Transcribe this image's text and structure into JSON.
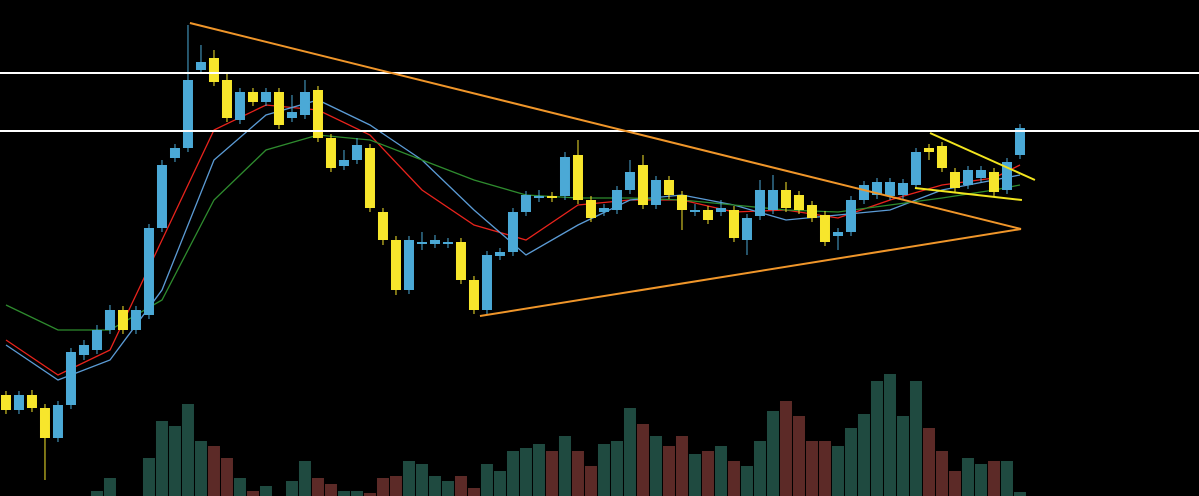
{
  "chart_data": {
    "type": "candlestick",
    "xlim": [
      -0.46,
      91.77
    ],
    "ylim": [
      4,
      500
    ],
    "vlim": [
      0,
      130
    ],
    "up_color": "#4ba9d6",
    "down_color": "#f7e62c",
    "volume_up_color": "#1f4a40",
    "volume_down_color": "#5c2a27",
    "open": [
      105,
      90,
      105,
      92,
      62,
      95,
      145,
      150,
      170,
      190,
      170,
      185,
      272,
      342,
      352,
      430,
      442,
      420,
      380,
      408,
      398,
      408,
      382,
      385,
      410,
      362,
      334,
      340,
      352,
      288,
      260,
      210,
      256,
      256,
      256,
      258,
      220,
      190,
      244,
      248,
      288,
      302,
      304,
      304,
      345,
      300,
      288,
      290,
      310,
      335,
      295,
      320,
      305,
      288,
      290,
      288,
      290,
      260,
      284,
      290,
      310,
      305,
      295,
      285,
      264,
      268,
      300,
      305,
      304,
      305,
      315,
      352,
      354,
      328,
      315,
      322,
      328,
      310,
      345
    ],
    "high": [
      109,
      109,
      110,
      96,
      99,
      152,
      160,
      175,
      195,
      194,
      194,
      276,
      340,
      356,
      475,
      455,
      450,
      426,
      412,
      412,
      412,
      412,
      405,
      420,
      414,
      366,
      350,
      362,
      356,
      292,
      264,
      264,
      268,
      265,
      262,
      262,
      224,
      249,
      252,
      292,
      309,
      310,
      308,
      348,
      360,
      304,
      296,
      314,
      340,
      345,
      324,
      324,
      309,
      296,
      294,
      300,
      294,
      286,
      320,
      325,
      318,
      309,
      299,
      289,
      272,
      304,
      319,
      322,
      322,
      321,
      352,
      356,
      358,
      332,
      334,
      334,
      332,
      342,
      376
    ],
    "low": [
      86,
      86,
      88,
      20,
      58,
      91,
      140,
      146,
      166,
      166,
      166,
      181,
      268,
      338,
      348,
      426,
      414,
      378,
      376,
      394,
      394,
      371,
      378,
      381,
      358,
      328,
      330,
      336,
      288,
      255,
      205,
      206,
      250,
      252,
      252,
      216,
      186,
      186,
      240,
      244,
      284,
      298,
      298,
      300,
      296,
      278,
      284,
      286,
      306,
      291,
      291,
      301,
      270,
      284,
      276,
      284,
      258,
      245,
      280,
      286,
      288,
      286,
      278,
      254,
      250,
      264,
      296,
      301,
      300,
      301,
      311,
      340,
      328,
      308,
      311,
      318,
      304,
      306,
      341
    ],
    "close": [
      90,
      105,
      92,
      62,
      95,
      148,
      155,
      170,
      190,
      170,
      190,
      272,
      335,
      352,
      420,
      438,
      418,
      382,
      408,
      398,
      408,
      375,
      388,
      408,
      362,
      332,
      340,
      355,
      292,
      260,
      210,
      260,
      258,
      260,
      258,
      220,
      190,
      245,
      248,
      288,
      305,
      304,
      302,
      343,
      300,
      282,
      292,
      310,
      328,
      295,
      320,
      305,
      290,
      290,
      280,
      292,
      262,
      282,
      310,
      310,
      292,
      290,
      282,
      258,
      268,
      300,
      315,
      318,
      318,
      317,
      348,
      348,
      332,
      312,
      330,
      330,
      308,
      338,
      372
    ],
    "volume": [
      0,
      0,
      0,
      0,
      0,
      0,
      0,
      5,
      18,
      0,
      0,
      38,
      75,
      70,
      92,
      55,
      50,
      38,
      18,
      5,
      10,
      0,
      15,
      35,
      18,
      12,
      5,
      5,
      3,
      18,
      20,
      35,
      32,
      20,
      15,
      20,
      8,
      32,
      25,
      45,
      48,
      52,
      45,
      60,
      45,
      30,
      52,
      55,
      88,
      72,
      60,
      50,
      60,
      42,
      45,
      50,
      35,
      30,
      55,
      85,
      95,
      80,
      55,
      55,
      50,
      68,
      82,
      115,
      122,
      80,
      115,
      68,
      45,
      25,
      38,
      32,
      35,
      35,
      4
    ],
    "series": [
      {
        "color": "#e8231c",
        "x": [
          0,
          4,
          8,
          12,
          16,
          20,
          24,
          28,
          32,
          36,
          40,
          44,
          48,
          52,
          56,
          60,
          64,
          68,
          72,
          76,
          78
        ],
        "values": [
          160,
          125,
          150,
          260,
          370,
          395,
          390,
          365,
          310,
          275,
          260,
          295,
          300,
          300,
          288,
          290,
          282,
          300,
          315,
          322,
          335
        ]
      },
      {
        "color": "#5b9bd5",
        "x": [
          0,
          4,
          8,
          12,
          16,
          20,
          24,
          28,
          32,
          36,
          40,
          44,
          48,
          52,
          56,
          60,
          64,
          68,
          72,
          76,
          78
        ],
        "values": [
          155,
          120,
          140,
          210,
          340,
          385,
          400,
          375,
          340,
          290,
          245,
          275,
          300,
          305,
          295,
          280,
          285,
          290,
          310,
          320,
          325
        ]
      },
      {
        "color": "#2e8b2e",
        "x": [
          0,
          4,
          8,
          12,
          16,
          20,
          24,
          28,
          32,
          36,
          40,
          44,
          48,
          52,
          56,
          60,
          64,
          68,
          72,
          76,
          78
        ],
        "values": [
          195,
          170,
          170,
          200,
          300,
          350,
          365,
          360,
          340,
          320,
          305,
          302,
          302,
          300,
          295,
          290,
          288,
          295,
          302,
          310,
          315
        ]
      }
    ],
    "hlines": [
      {
        "color": "#ffffff",
        "value": 427
      },
      {
        "color": "#ffffff",
        "value": 369
      }
    ],
    "trendlines": [
      {
        "color": "#f0962a",
        "x": [
          14.15,
          78.08
        ],
        "values": [
          477,
          271
        ]
      },
      {
        "color": "#f0962a",
        "x": [
          36.46,
          78.08
        ],
        "values": [
          184,
          271
        ]
      },
      {
        "color": "#f2e41e",
        "x": [
          71.08,
          79.15
        ],
        "values": [
          367,
          320
        ]
      },
      {
        "color": "#f2e41e",
        "x": [
          69.92,
          78.15
        ],
        "values": [
          312,
          300
        ]
      }
    ]
  }
}
